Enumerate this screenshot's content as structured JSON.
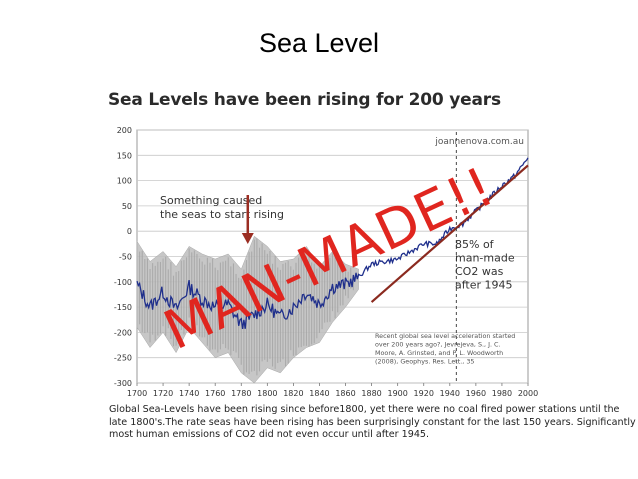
{
  "slide": {
    "title": "Sea Level"
  },
  "figure": {
    "caption_lines": [
      "Global Sea-Levels have been rising since before1800, yet there were no coal fired power stations until the",
      "late 1800's.The rate seas have been rising has been surprisingly constant for the last 150 years. Significantly",
      "most human emissions of CO2 did not even occur until after 1945."
    ]
  },
  "chart_data": {
    "type": "line",
    "title": "Sea Levels have been rising for 200 years",
    "xlabel": "",
    "ylabel": "",
    "xlim": [
      1700,
      2000
    ],
    "ylim": [
      -300,
      200
    ],
    "x_ticks": [
      1700,
      1720,
      1740,
      1760,
      1780,
      1800,
      1820,
      1840,
      1860,
      1880,
      1900,
      1920,
      1940,
      1960,
      1980,
      2000
    ],
    "y_ticks": [
      200,
      150,
      100,
      50,
      0,
      -50,
      -100,
      -150,
      -200,
      -250,
      -300
    ],
    "grid": true,
    "source_label": "joannenova.com.au",
    "series": [
      {
        "x": [
          1700,
          1710,
          1720,
          1730,
          1740,
          1750,
          1760,
          1770,
          1780,
          1790,
          1800,
          1810,
          1820,
          1830,
          1840,
          1850,
          1860,
          1870,
          1880,
          1890,
          1900,
          1910,
          1920,
          1930,
          1940,
          1950,
          1960,
          1970,
          1980,
          1990,
          2000
        ],
        "y": [
          -105,
          -150,
          -120,
          -155,
          -110,
          -135,
          -150,
          -145,
          -185,
          -165,
          -145,
          -170,
          -150,
          -120,
          -145,
          -110,
          -105,
          -90,
          -65,
          -60,
          -55,
          -40,
          -25,
          -25,
          5,
          15,
          40,
          65,
          90,
          110,
          145
        ],
        "color": "#1f2f8c"
      },
      {
        "x": [
          1700,
          1710,
          1720,
          1730,
          1740,
          1750,
          1760,
          1770,
          1780,
          1790,
          1800,
          1810,
          1820,
          1830,
          1840,
          1850,
          1860,
          1870
        ],
        "upper": [
          -20,
          -60,
          -40,
          -70,
          -30,
          -45,
          -55,
          -45,
          -75,
          -10,
          -30,
          -60,
          -55,
          -30,
          -70,
          -40,
          -65,
          -75
        ],
        "lower": [
          -190,
          -230,
          -200,
          -240,
          -190,
          -220,
          -250,
          -240,
          -280,
          -300,
          -270,
          -280,
          -250,
          -230,
          -220,
          -180,
          -150,
          -115
        ],
        "color": "#bdbdbd"
      },
      {
        "x": [
          1880,
          2000
        ],
        "y": [
          -140,
          130
        ],
        "color": "#8b2a1f"
      }
    ],
    "annotations": {
      "arrow_text_lines": [
        "Something caused",
        "the seas to start rising"
      ],
      "arrow_x": 1785,
      "dashed_year": 1945,
      "note_lines": [
        "85% of",
        "man-made",
        "CO2 was",
        "after 1945"
      ],
      "reference_lines": [
        "Recent global sea level acceleration started",
        "over 200 years ago?, Jevrejeva, S., J. C.",
        "Moore, A. Grinsted, and P. L. Woodworth",
        "(2008), Geophys. Res. Lett., 35"
      ],
      "stamp_text": "MAN-MADE!!"
    },
    "colors": {
      "stamp": "#e0261f",
      "arrow": "#9b2d22",
      "grid": "#c8c8c8",
      "band": "#bdbdbd"
    }
  }
}
